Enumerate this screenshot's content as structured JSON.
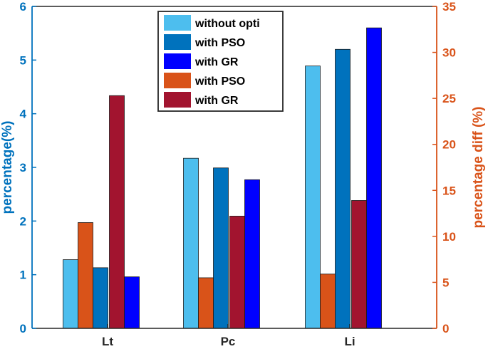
{
  "chart_data": {
    "type": "bar",
    "categories": [
      "Lt",
      "Pc",
      "Li"
    ],
    "left_axis": {
      "label": "percentage(%)",
      "ylim": [
        0,
        6
      ],
      "ticks": [
        "0",
        "1",
        "2",
        "3",
        "4",
        "5",
        "6"
      ],
      "color": "#0072BD"
    },
    "right_axis": {
      "label": "percentage diff (%)",
      "ylim": [
        0,
        35
      ],
      "ticks": [
        "0",
        "5",
        "10",
        "15",
        "20",
        "25",
        "30",
        "35"
      ],
      "color": "#D95319"
    },
    "series": [
      {
        "name": "without opti",
        "axis": "left",
        "color": "#4DBEEE",
        "values": [
          1.28,
          3.17,
          4.89
        ]
      },
      {
        "name": "with PSO",
        "axis": "left",
        "color": "#0072BD",
        "values": [
          1.13,
          2.99,
          5.2
        ]
      },
      {
        "name": "with GR",
        "axis": "left",
        "color": "#0000FF",
        "values": [
          0.96,
          2.77,
          5.6
        ]
      },
      {
        "name": "with PSO",
        "axis": "right",
        "color": "#D95319",
        "values": [
          11.5,
          5.5,
          5.9
        ]
      },
      {
        "name": "with GR",
        "axis": "right",
        "color": "#A2142F",
        "values": [
          25.3,
          12.2,
          13.9
        ]
      }
    ],
    "legend": {
      "placement": "top-center"
    }
  }
}
